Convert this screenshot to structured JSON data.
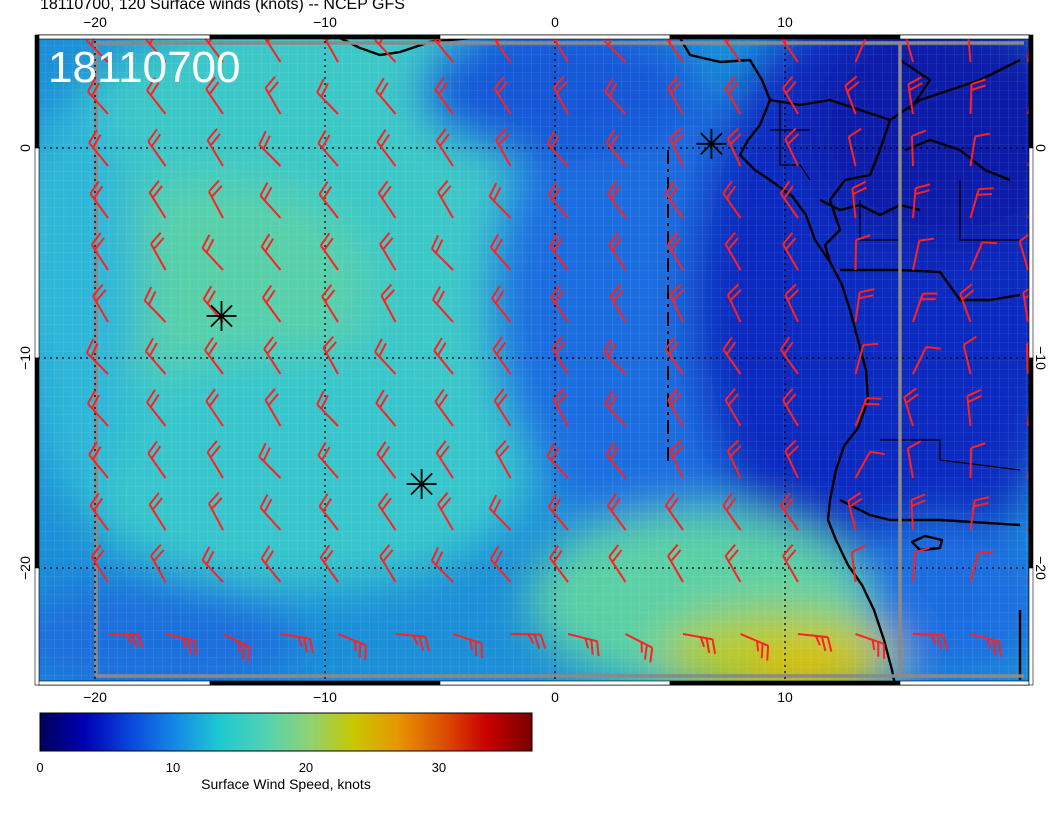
{
  "title": "18110700, 120 Surface winds (knots) -- NCEP GFS",
  "map_label": "18110700",
  "axes": {
    "lon_ticks": [
      {
        "value": -20,
        "label": "−20"
      },
      {
        "value": -10,
        "label": "−10"
      },
      {
        "value": 0,
        "label": "0"
      },
      {
        "value": 10,
        "label": "10"
      }
    ],
    "lat_ticks": [
      {
        "value": 0,
        "label": "0"
      },
      {
        "value": -10,
        "label": "−10"
      },
      {
        "value": -20,
        "label": "−20"
      }
    ]
  },
  "colorbar": {
    "title": "Surface Wind Speed, knots",
    "ticks": [
      {
        "value": 0,
        "label": "0"
      },
      {
        "value": 10,
        "label": "10"
      },
      {
        "value": 20,
        "label": "20"
      },
      {
        "value": 30,
        "label": "30"
      }
    ],
    "range": [
      0,
      37
    ],
    "colors": [
      "#00005a",
      "#0000b4",
      "#0a46dc",
      "#1487e6",
      "#1ec8d2",
      "#50d2b4",
      "#8cd278",
      "#c8c800",
      "#e69600",
      "#dc5000",
      "#c80000",
      "#780000"
    ]
  },
  "storm_markers": [
    {
      "name": "marker-1",
      "lon": -14.5,
      "lat": -8
    },
    {
      "name": "marker-2",
      "lon": -5.8,
      "lat": -16
    },
    {
      "name": "marker-3",
      "lon": 6.8,
      "lat": 0.2
    }
  ],
  "barb_color": "#ff2020"
}
